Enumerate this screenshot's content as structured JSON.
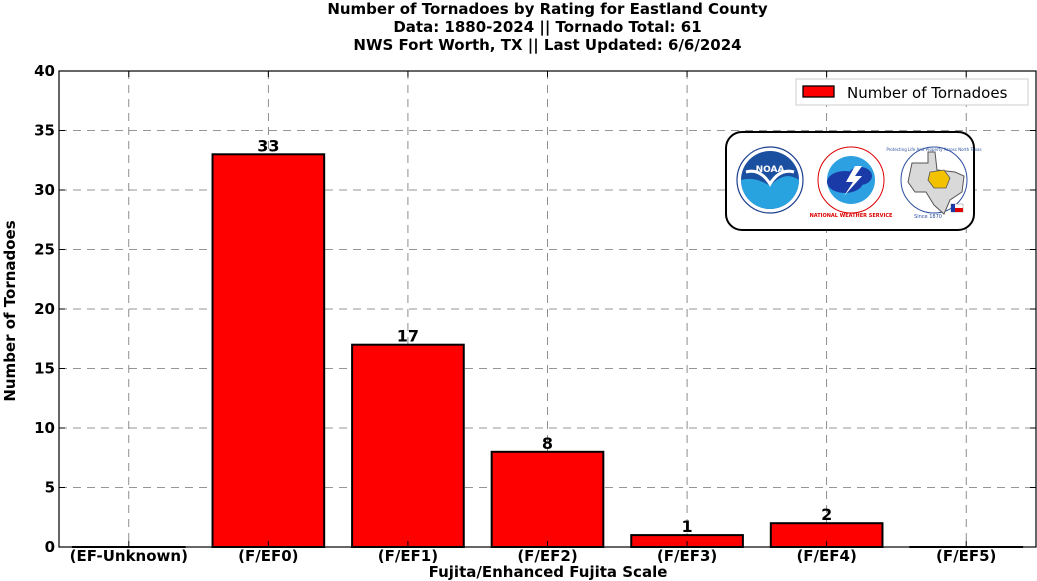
{
  "chart_data": {
    "type": "bar",
    "title_lines": [
      "Number of Tornadoes by Rating for Eastland County",
      "Data: 1880-2024 || Tornado Total: 61",
      "NWS Fort Worth, TX || Last Updated: 6/6/2024"
    ],
    "categories": [
      "(EF-Unknown)",
      "(F/EF0)",
      "(F/EF1)",
      "(F/EF2)",
      "(F/EF3)",
      "(F/EF4)",
      "(F/EF5)"
    ],
    "series": [
      {
        "name": "Number of Tornadoes",
        "values": [
          0,
          33,
          17,
          8,
          1,
          2,
          0
        ],
        "color": "#ff0000"
      }
    ],
    "data_labels": [
      "",
      "33",
      "17",
      "8",
      "1",
      "2",
      ""
    ],
    "xlabel": "Fujita/Enhanced Fujita Scale",
    "ylabel": "Number of Tornadoes",
    "ylim": [
      0,
      40
    ],
    "yticks": [
      0,
      5,
      10,
      15,
      20,
      25,
      30,
      35,
      40
    ],
    "grid": true,
    "legend_position": "top-right"
  },
  "logos": {
    "noaa_text": "NOAA",
    "nws_text": "NATIONAL WEATHER SERVICE",
    "texas_text": "Protecting Life And Property Across North Texas",
    "texas_since": "Since 1870"
  }
}
